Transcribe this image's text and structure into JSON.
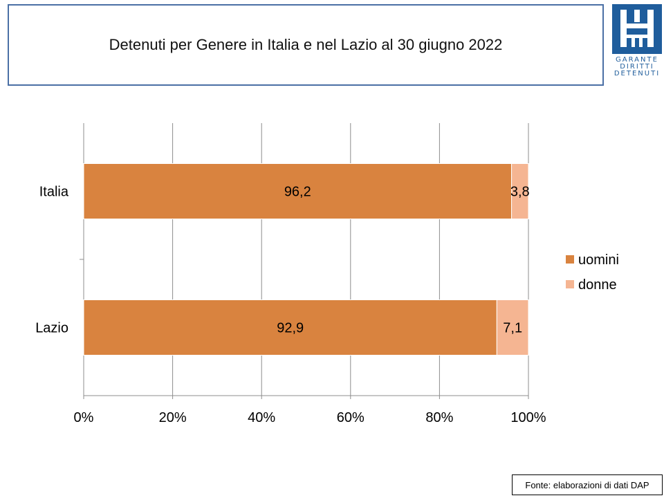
{
  "title": "Detenuti per Genere in Italia e nel Lazio al 30 giugno 2022",
  "logo": {
    "lines": [
      "GARANTE",
      "DIRITTI",
      "DETENUTI"
    ],
    "color": "#1f5d9c"
  },
  "source": "Fonte: elaborazioni di dati DAP",
  "chart_data": {
    "type": "bar",
    "orientation": "horizontal",
    "stacked": "percent",
    "title": "Detenuti per Genere in Italia e nel Lazio al 30 giugno 2022",
    "categories": [
      "Italia",
      "Lazio"
    ],
    "series": [
      {
        "name": "uomini",
        "values": [
          96.2,
          92.9
        ],
        "labels": [
          "96,2",
          "92,9"
        ],
        "color": "#d9833f"
      },
      {
        "name": "donne",
        "values": [
          3.8,
          7.1
        ],
        "labels": [
          "3,8",
          "7,1"
        ],
        "color": "#f5b592"
      }
    ],
    "xlim": [
      0,
      100
    ],
    "xticks": [
      0,
      20,
      40,
      60,
      80,
      100
    ],
    "xtick_labels": [
      "0%",
      "20%",
      "40%",
      "60%",
      "80%",
      "100%"
    ],
    "grid": true,
    "legend_position": "right"
  }
}
